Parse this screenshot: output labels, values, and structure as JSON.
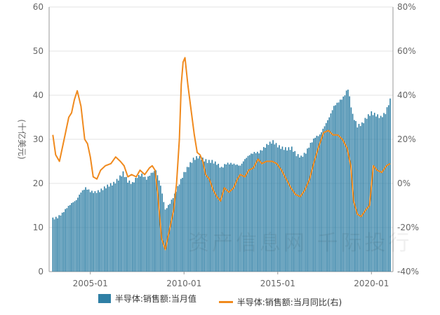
{
  "colors": {
    "bar": "#2f7fa5",
    "line": "#f08a1e",
    "grid": "#e3e3e3",
    "axis": "#999999"
  },
  "watermark": "资产信息网 千际投行",
  "chart_data": {
    "type": "bar+line",
    "ylabel": "(十亿美元)",
    "yleft": {
      "min": 0,
      "max": 60,
      "ticks": [
        "0",
        "10",
        "20",
        "30",
        "40",
        "50",
        "60"
      ]
    },
    "yright": {
      "min": -40,
      "max": 80,
      "ticks": [
        "-40%",
        "-20%",
        "0%",
        "20%",
        "40%",
        "60%",
        "80%"
      ]
    },
    "xticks": [
      {
        "label": "2005-01",
        "x": 2005.0
      },
      {
        "label": "2010-01",
        "x": 2010.0
      },
      {
        "label": "2015-01",
        "x": 2015.0
      },
      {
        "label": "2020-01",
        "x": 2020.0
      }
    ],
    "series": [
      {
        "name": "半导体:销售额:当月值",
        "type": "bar",
        "axis": "left",
        "points": [
          [
            2003.0,
            12.0
          ],
          [
            2003.25,
            12.3
          ],
          [
            2003.5,
            13.2
          ],
          [
            2003.75,
            14.5
          ],
          [
            2004.0,
            15.5
          ],
          [
            2004.25,
            16.2
          ],
          [
            2004.5,
            18.0
          ],
          [
            2004.75,
            19.0
          ],
          [
            2005.0,
            18.2
          ],
          [
            2005.25,
            18.0
          ],
          [
            2005.5,
            18.3
          ],
          [
            2005.75,
            19.0
          ],
          [
            2006.0,
            19.6
          ],
          [
            2006.25,
            20.0
          ],
          [
            2006.5,
            21.0
          ],
          [
            2006.75,
            22.4
          ],
          [
            2007.0,
            20.5
          ],
          [
            2007.25,
            20.0
          ],
          [
            2007.5,
            21.5
          ],
          [
            2007.75,
            22.0
          ],
          [
            2008.0,
            21.0
          ],
          [
            2008.25,
            22.3
          ],
          [
            2008.5,
            23.0
          ],
          [
            2008.75,
            19.5
          ],
          [
            2009.0,
            14.0
          ],
          [
            2009.25,
            15.5
          ],
          [
            2009.5,
            17.5
          ],
          [
            2009.75,
            20.0
          ],
          [
            2010.0,
            22.3
          ],
          [
            2010.25,
            24.0
          ],
          [
            2010.5,
            25.5
          ],
          [
            2010.75,
            26.0
          ],
          [
            2011.0,
            25.5
          ],
          [
            2011.25,
            25.0
          ],
          [
            2011.5,
            25.0
          ],
          [
            2011.75,
            24.5
          ],
          [
            2012.0,
            23.5
          ],
          [
            2012.25,
            24.5
          ],
          [
            2012.5,
            24.5
          ],
          [
            2012.75,
            24.3
          ],
          [
            2013.0,
            24.0
          ],
          [
            2013.25,
            25.5
          ],
          [
            2013.5,
            26.5
          ],
          [
            2013.75,
            27.0
          ],
          [
            2014.0,
            27.0
          ],
          [
            2014.25,
            28.0
          ],
          [
            2014.5,
            29.0
          ],
          [
            2014.75,
            29.5
          ],
          [
            2015.0,
            28.5
          ],
          [
            2015.25,
            28.0
          ],
          [
            2015.5,
            27.8
          ],
          [
            2015.75,
            28.0
          ],
          [
            2016.0,
            26.5
          ],
          [
            2016.25,
            26.0
          ],
          [
            2016.5,
            27.0
          ],
          [
            2016.75,
            29.0
          ],
          [
            2017.0,
            30.5
          ],
          [
            2017.25,
            31.0
          ],
          [
            2017.5,
            33.0
          ],
          [
            2017.75,
            35.0
          ],
          [
            2018.0,
            37.5
          ],
          [
            2018.25,
            38.5
          ],
          [
            2018.5,
            39.5
          ],
          [
            2018.75,
            41.5
          ],
          [
            2019.0,
            35.5
          ],
          [
            2019.25,
            33.0
          ],
          [
            2019.5,
            33.5
          ],
          [
            2019.75,
            35.0
          ],
          [
            2020.0,
            36.0
          ],
          [
            2020.25,
            35.5
          ],
          [
            2020.5,
            35.0
          ],
          [
            2020.75,
            36.0
          ],
          [
            2021.0,
            39.0
          ]
        ]
      },
      {
        "name": "半导体:销售额:当月同比(右)",
        "type": "line",
        "axis": "right",
        "points": [
          [
            2003.0,
            22
          ],
          [
            2003.15,
            13
          ],
          [
            2003.35,
            10
          ],
          [
            2003.6,
            20
          ],
          [
            2003.85,
            30
          ],
          [
            2004.0,
            32
          ],
          [
            2004.15,
            38
          ],
          [
            2004.3,
            42
          ],
          [
            2004.5,
            35
          ],
          [
            2004.7,
            20
          ],
          [
            2004.85,
            18
          ],
          [
            2005.0,
            12
          ],
          [
            2005.15,
            3
          ],
          [
            2005.35,
            2
          ],
          [
            2005.55,
            6
          ],
          [
            2005.8,
            8
          ],
          [
            2006.1,
            9
          ],
          [
            2006.35,
            12
          ],
          [
            2006.6,
            10
          ],
          [
            2006.8,
            8
          ],
          [
            2007.0,
            3
          ],
          [
            2007.2,
            4
          ],
          [
            2007.45,
            3
          ],
          [
            2007.65,
            6
          ],
          [
            2007.9,
            4
          ],
          [
            2008.15,
            7
          ],
          [
            2008.3,
            8
          ],
          [
            2008.45,
            6
          ],
          [
            2008.6,
            -5
          ],
          [
            2008.8,
            -25
          ],
          [
            2009.0,
            -30
          ],
          [
            2009.2,
            -22
          ],
          [
            2009.45,
            -12
          ],
          [
            2009.6,
            0
          ],
          [
            2009.75,
            20
          ],
          [
            2009.85,
            45
          ],
          [
            2009.95,
            55
          ],
          [
            2010.05,
            57
          ],
          [
            2010.2,
            45
          ],
          [
            2010.35,
            35
          ],
          [
            2010.55,
            22
          ],
          [
            2010.7,
            14
          ],
          [
            2010.85,
            13
          ],
          [
            2011.0,
            10
          ],
          [
            2011.15,
            4
          ],
          [
            2011.35,
            2
          ],
          [
            2011.55,
            -3
          ],
          [
            2011.75,
            -6
          ],
          [
            2011.95,
            -8
          ],
          [
            2012.15,
            -2
          ],
          [
            2012.4,
            -4
          ],
          [
            2012.65,
            -2
          ],
          [
            2012.85,
            2
          ],
          [
            2013.0,
            4
          ],
          [
            2013.25,
            3
          ],
          [
            2013.45,
            6
          ],
          [
            2013.7,
            7
          ],
          [
            2013.95,
            11
          ],
          [
            2014.15,
            9
          ],
          [
            2014.4,
            10
          ],
          [
            2014.7,
            10
          ],
          [
            2014.95,
            9
          ],
          [
            2015.2,
            6
          ],
          [
            2015.45,
            2
          ],
          [
            2015.7,
            -2
          ],
          [
            2015.95,
            -5
          ],
          [
            2016.2,
            -6
          ],
          [
            2016.45,
            -3
          ],
          [
            2016.7,
            2
          ],
          [
            2016.95,
            10
          ],
          [
            2017.2,
            17
          ],
          [
            2017.45,
            23
          ],
          [
            2017.7,
            24
          ],
          [
            2017.95,
            22
          ],
          [
            2018.2,
            22
          ],
          [
            2018.45,
            20
          ],
          [
            2018.7,
            16
          ],
          [
            2018.9,
            8
          ],
          [
            2019.05,
            -8
          ],
          [
            2019.25,
            -14
          ],
          [
            2019.45,
            -15
          ],
          [
            2019.7,
            -12
          ],
          [
            2019.9,
            -10
          ],
          [
            2020.1,
            8
          ],
          [
            2020.3,
            6
          ],
          [
            2020.55,
            5
          ],
          [
            2020.8,
            8
          ],
          [
            2021.0,
            9
          ]
        ]
      }
    ],
    "legend": [
      "半导体:销售额:当月值",
      "半导体:销售额:当月同比(右)"
    ],
    "legend_position": "bottom",
    "grid": true
  }
}
